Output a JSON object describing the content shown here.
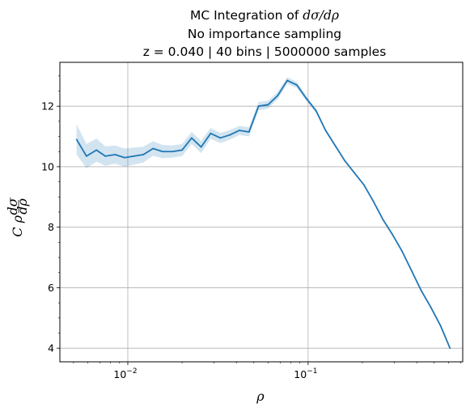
{
  "chart_data": {
    "type": "line",
    "title_lines": [
      "MC Integration of dσ/dρ",
      "No importance sampling",
      "z = 0.040 | 40 bins | 5000000 samples"
    ],
    "title_math": {
      "prefix": "MC Integration of ",
      "expr": "dσ/dρ"
    },
    "xlabel": "ρ",
    "ylabel": "C ρ dσ/dρ",
    "xscale": "log",
    "xlim": [
      0.0042,
      0.72
    ],
    "ylim": [
      3.55,
      13.45
    ],
    "xticks": [
      {
        "value": 0.01,
        "label": "10",
        "exp": "−2"
      },
      {
        "value": 0.1,
        "label": "10",
        "exp": "−1"
      }
    ],
    "yticks": [
      4,
      6,
      8,
      10,
      12
    ],
    "grid": true,
    "line_color": "#1f77b4",
    "band_color": "#1f77b4",
    "series": [
      {
        "x": [
          0.0052,
          0.0059,
          0.0067,
          0.0075,
          0.0085,
          0.0096,
          0.0108,
          0.0122,
          0.0138,
          0.0156,
          0.0177,
          0.02,
          0.0226,
          0.0255,
          0.0288,
          0.0326,
          0.0368,
          0.0416,
          0.047,
          0.0531,
          0.06,
          0.0678,
          0.0766,
          0.0866,
          0.0979,
          0.1106,
          0.125,
          0.1412,
          0.1596,
          0.1803,
          0.2038,
          0.2303,
          0.2602,
          0.2941,
          0.3323,
          0.3755,
          0.4243,
          0.4795,
          0.5418,
          0.6123
        ],
        "y": [
          10.9,
          10.35,
          10.55,
          10.35,
          10.4,
          10.3,
          10.35,
          10.4,
          10.6,
          10.5,
          10.5,
          10.55,
          10.95,
          10.65,
          11.1,
          10.95,
          11.05,
          11.2,
          11.15,
          12.0,
          12.05,
          12.35,
          12.85,
          12.7,
          12.25,
          11.85,
          11.2,
          10.7,
          10.2,
          9.8,
          9.4,
          8.85,
          8.25,
          7.75,
          7.2,
          6.55,
          5.9,
          5.35,
          4.75,
          4.0
        ],
        "band": [
          0.5,
          0.4,
          0.38,
          0.32,
          0.3,
          0.3,
          0.28,
          0.26,
          0.24,
          0.22,
          0.2,
          0.2,
          0.2,
          0.2,
          0.18,
          0.17,
          0.16,
          0.15,
          0.15,
          0.14,
          0.13,
          0.12,
          0.11,
          0.1,
          0.08,
          0.06,
          0.05,
          0.04,
          0.03,
          0.02,
          0.02,
          0.02,
          0.02,
          0.02,
          0.02,
          0.02,
          0.02,
          0.02,
          0.02,
          0.02
        ]
      }
    ]
  }
}
